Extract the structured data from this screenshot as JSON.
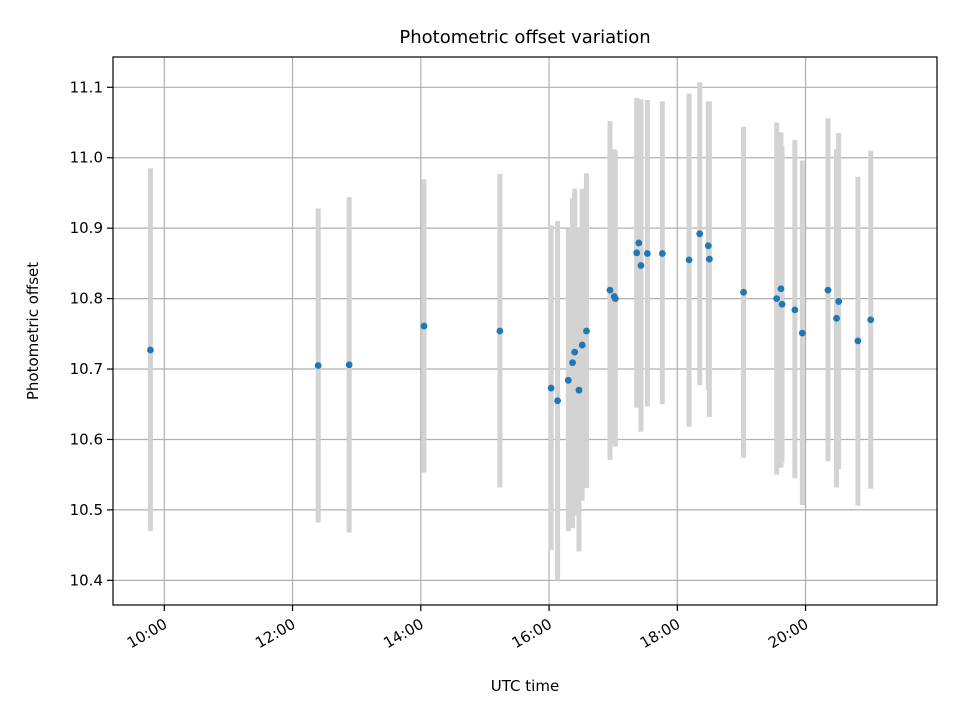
{
  "chart_data": {
    "type": "scatter",
    "title": "Photometric offset variation",
    "xlabel": "UTC time",
    "ylabel": "Photometric offset",
    "grid": true,
    "x_axis_kind": "time",
    "xlim": [
      "09:12",
      "22:03"
    ],
    "ylim": [
      10.365,
      11.143
    ],
    "x_ticks": [
      "10:00",
      "12:00",
      "14:00",
      "16:00",
      "18:00",
      "20:00"
    ],
    "y_ticks": [
      10.4,
      10.5,
      10.6,
      10.7,
      10.8,
      10.9,
      11.0,
      11.1
    ],
    "y_tick_labels": [
      "10.4",
      "10.5",
      "10.6",
      "10.7",
      "10.8",
      "10.9",
      "11.0",
      "11.1"
    ],
    "errorbar_color": "#d3d3d3",
    "point_color": "#1f77b4",
    "points": [
      {
        "time": "09:47",
        "y": 10.727,
        "ylo": 10.47,
        "yhi": 10.985
      },
      {
        "time": "12:24",
        "y": 10.705,
        "ylo": 10.482,
        "yhi": 10.928
      },
      {
        "time": "12:53",
        "y": 10.706,
        "ylo": 10.468,
        "yhi": 10.944
      },
      {
        "time": "14:03",
        "y": 10.761,
        "ylo": 10.553,
        "yhi": 10.969
      },
      {
        "time": "15:14",
        "y": 10.754,
        "ylo": 10.532,
        "yhi": 10.977
      },
      {
        "time": "16:02",
        "y": 10.673,
        "ylo": 10.443,
        "yhi": 10.904
      },
      {
        "time": "16:08",
        "y": 10.655,
        "ylo": 10.4,
        "yhi": 10.91
      },
      {
        "time": "16:18",
        "y": 10.684,
        "ylo": 10.47,
        "yhi": 10.899
      },
      {
        "time": "16:22",
        "y": 10.709,
        "ylo": 10.474,
        "yhi": 10.943
      },
      {
        "time": "16:24",
        "y": 10.724,
        "ylo": 10.492,
        "yhi": 10.956
      },
      {
        "time": "16:28",
        "y": 10.67,
        "ylo": 10.441,
        "yhi": 10.9
      },
      {
        "time": "16:31",
        "y": 10.734,
        "ylo": 10.513,
        "yhi": 10.956
      },
      {
        "time": "16:35",
        "y": 10.754,
        "ylo": 10.531,
        "yhi": 10.978
      },
      {
        "time": "16:57",
        "y": 10.812,
        "ylo": 10.571,
        "yhi": 11.052
      },
      {
        "time": "17:01",
        "y": 10.803,
        "ylo": 10.593,
        "yhi": 11.012
      },
      {
        "time": "17:02",
        "y": 10.8,
        "ylo": 10.59,
        "yhi": 11.01
      },
      {
        "time": "17:22",
        "y": 10.865,
        "ylo": 10.645,
        "yhi": 11.085
      },
      {
        "time": "17:24",
        "y": 10.879,
        "ylo": 10.676,
        "yhi": 11.082
      },
      {
        "time": "17:26",
        "y": 10.847,
        "ylo": 10.611,
        "yhi": 11.083
      },
      {
        "time": "17:32",
        "y": 10.864,
        "ylo": 10.647,
        "yhi": 11.082
      },
      {
        "time": "17:46",
        "y": 10.864,
        "ylo": 10.65,
        "yhi": 11.08
      },
      {
        "time": "18:11",
        "y": 10.855,
        "ylo": 10.618,
        "yhi": 11.091
      },
      {
        "time": "18:21",
        "y": 10.892,
        "ylo": 10.677,
        "yhi": 11.107
      },
      {
        "time": "18:29",
        "y": 10.875,
        "ylo": 10.67,
        "yhi": 11.08
      },
      {
        "time": "18:30",
        "y": 10.856,
        "ylo": 10.632,
        "yhi": 11.08
      },
      {
        "time": "19:02",
        "y": 10.809,
        "ylo": 10.574,
        "yhi": 11.044
      },
      {
        "time": "19:33",
        "y": 10.8,
        "ylo": 10.55,
        "yhi": 11.05
      },
      {
        "time": "19:37",
        "y": 10.814,
        "ylo": 10.56,
        "yhi": 11.036
      },
      {
        "time": "19:38",
        "y": 10.792,
        "ylo": 10.567,
        "yhi": 11.017
      },
      {
        "time": "19:50",
        "y": 10.784,
        "ylo": 10.545,
        "yhi": 11.025
      },
      {
        "time": "19:57",
        "y": 10.751,
        "ylo": 10.507,
        "yhi": 10.996
      },
      {
        "time": "20:21",
        "y": 10.812,
        "ylo": 10.569,
        "yhi": 11.056
      },
      {
        "time": "20:29",
        "y": 10.772,
        "ylo": 10.532,
        "yhi": 11.012
      },
      {
        "time": "20:31",
        "y": 10.796,
        "ylo": 10.558,
        "yhi": 11.035
      },
      {
        "time": "20:49",
        "y": 10.74,
        "ylo": 10.506,
        "yhi": 10.973
      },
      {
        "time": "21:01",
        "y": 10.77,
        "ylo": 10.53,
        "yhi": 11.01
      }
    ]
  }
}
